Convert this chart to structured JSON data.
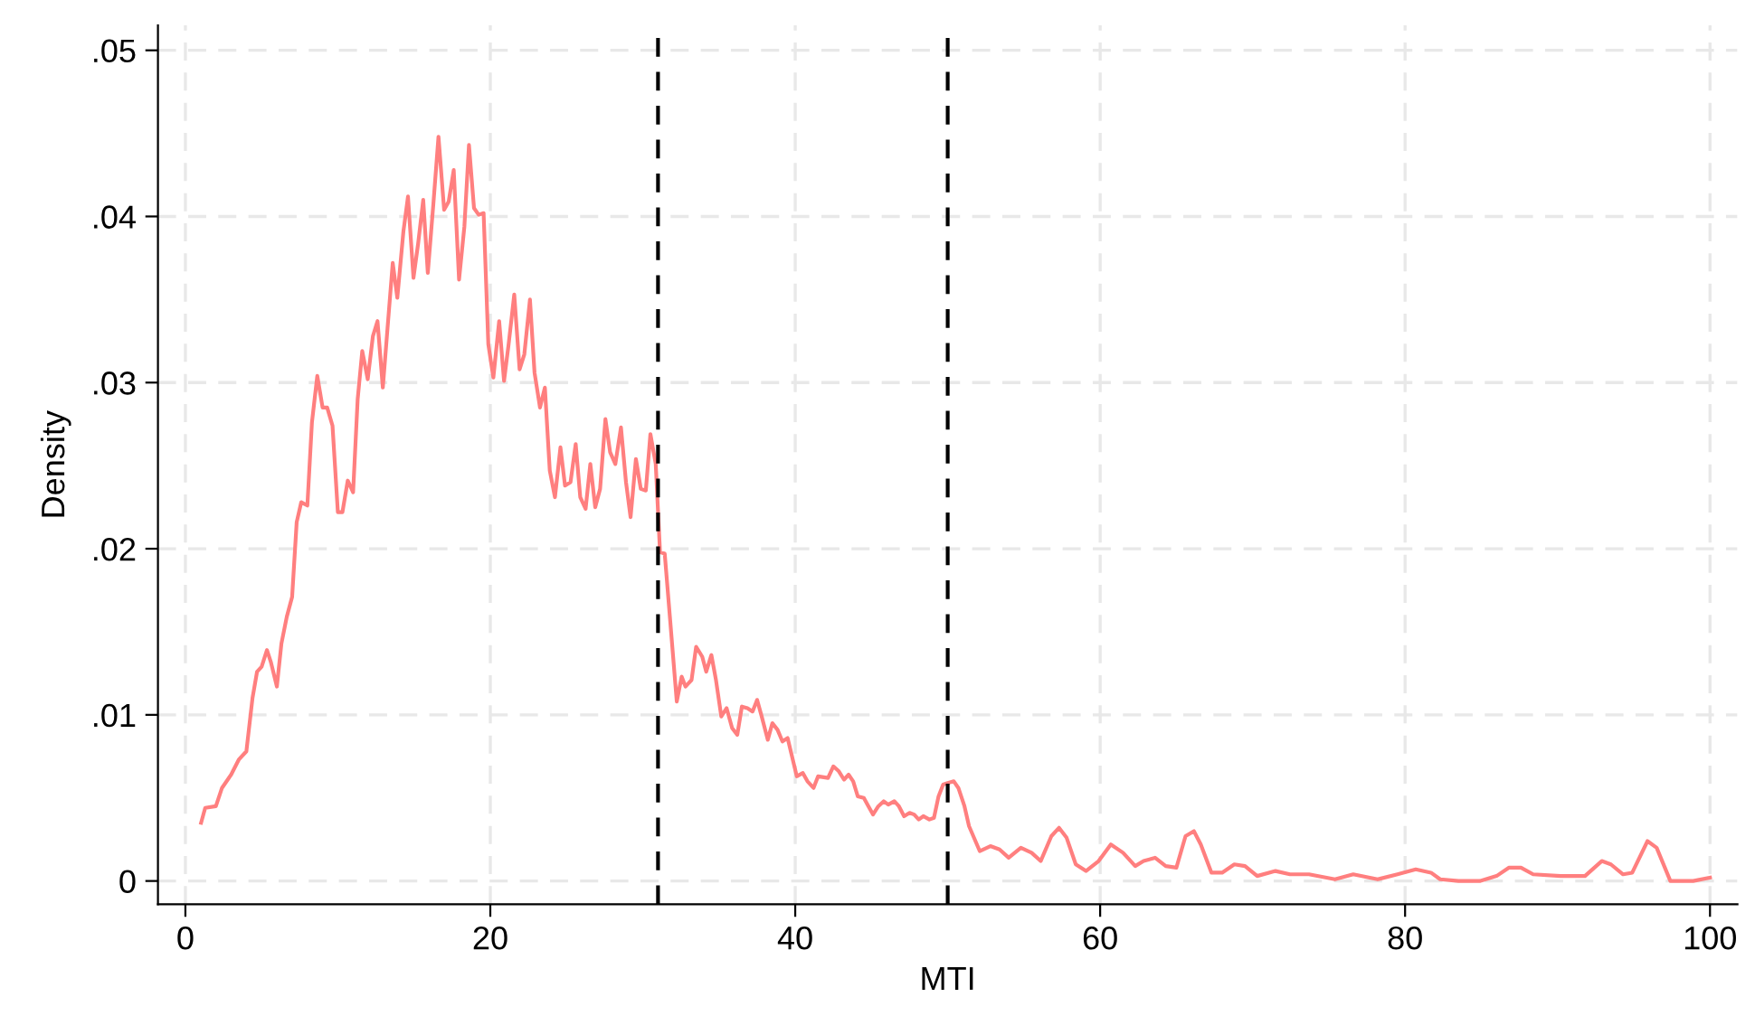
{
  "chart_data": {
    "type": "line",
    "xlabel": "MTI",
    "ylabel": "Density",
    "x": [
      1.03,
      1.3,
      2.0,
      2.4,
      3.0,
      3.5,
      4.0,
      4.4,
      4.7,
      5.0,
      5.35,
      5.6,
      6.0,
      6.3,
      6.65,
      7.0,
      7.3,
      7.6,
      8.0,
      8.3,
      8.65,
      9.0,
      9.3,
      9.65,
      10.0,
      10.3,
      10.65,
      11.0,
      11.3,
      11.6,
      11.96,
      12.3,
      12.6,
      12.95,
      13.26,
      13.6,
      13.9,
      14.3,
      14.6,
      14.96,
      15.27,
      15.6,
      15.9,
      16.26,
      16.6,
      16.97,
      17.27,
      17.6,
      17.95,
      18.3,
      18.6,
      18.93,
      19.24,
      19.56,
      19.87,
      20.2,
      20.58,
      20.9,
      21.2,
      21.57,
      21.92,
      22.23,
      22.6,
      22.9,
      23.26,
      23.58,
      23.9,
      24.24,
      24.6,
      24.9,
      25.26,
      25.6,
      25.9,
      26.25,
      26.56,
      26.88,
      27.2,
      27.55,
      27.86,
      28.2,
      28.57,
      28.9,
      29.2,
      29.55,
      29.87,
      30.2,
      30.5,
      30.85,
      31.13,
      31.44,
      31.76,
      32.23,
      32.55,
      32.8,
      33.2,
      33.5,
      33.9,
      34.16,
      34.5,
      34.8,
      35.15,
      35.5,
      35.86,
      36.2,
      36.5,
      36.87,
      37.2,
      37.5,
      37.8,
      38.2,
      38.5,
      38.84,
      39.16,
      39.5,
      40.1,
      40.5,
      40.8,
      41.2,
      41.5,
      42.15,
      42.5,
      42.86,
      43.2,
      43.5,
      43.8,
      44.1,
      44.5,
      44.8,
      45.1,
      45.45,
      45.8,
      46.1,
      46.5,
      46.8,
      47.14,
      47.5,
      47.8,
      48.1,
      48.4,
      48.8,
      49.1,
      49.4,
      49.7,
      50.0,
      50.4,
      50.7,
      51.1,
      51.4,
      52.1,
      52.8,
      53.4,
      54.0,
      54.8,
      55.5,
      56.1,
      56.8,
      57.3,
      57.8,
      58.4,
      59.07,
      59.9,
      60.7,
      61.5,
      62.3,
      62.85,
      63.6,
      64.3,
      65.0,
      65.6,
      66.15,
      66.6,
      67.3,
      68.0,
      68.8,
      69.5,
      70.3,
      71.5,
      72.45,
      73.7,
      75.4,
      76.6,
      78.2,
      79.5,
      80.7,
      81.7,
      82.3,
      83.5,
      84.9,
      86.0,
      86.8,
      87.6,
      88.4,
      90.2,
      91.8,
      92.9,
      93.5,
      94.3,
      94.9,
      95.9,
      96.5,
      97.4,
      98.9,
      100.0
    ],
    "series": [
      {
        "color": "#ff7f7f",
        "values": [
          0.0035,
          0.0044,
          0.0045,
          0.0056,
          0.0064,
          0.0073,
          0.0078,
          0.011,
          0.0126,
          0.0129,
          0.0139,
          0.0132,
          0.0117,
          0.0143,
          0.0159,
          0.0171,
          0.0216,
          0.0228,
          0.0226,
          0.0276,
          0.0304,
          0.0285,
          0.0285,
          0.0274,
          0.0222,
          0.0222,
          0.0241,
          0.0234,
          0.029,
          0.0319,
          0.0302,
          0.0328,
          0.0337,
          0.0297,
          0.0333,
          0.0372,
          0.0351,
          0.0391,
          0.0412,
          0.0363,
          0.0384,
          0.041,
          0.0366,
          0.0407,
          0.0448,
          0.0404,
          0.0409,
          0.0428,
          0.0362,
          0.0394,
          0.0443,
          0.0405,
          0.0401,
          0.0402,
          0.0323,
          0.0303,
          0.0337,
          0.0301,
          0.0323,
          0.0353,
          0.0308,
          0.0317,
          0.035,
          0.0306,
          0.0285,
          0.0297,
          0.0247,
          0.0231,
          0.0261,
          0.0238,
          0.024,
          0.0263,
          0.0231,
          0.0224,
          0.0251,
          0.0225,
          0.0236,
          0.0278,
          0.0258,
          0.0251,
          0.0273,
          0.024,
          0.0219,
          0.0254,
          0.0236,
          0.0235,
          0.0269,
          0.0251,
          0.0198,
          0.0197,
          0.0161,
          0.0108,
          0.0123,
          0.0117,
          0.0121,
          0.0141,
          0.0135,
          0.0126,
          0.0136,
          0.0121,
          0.0099,
          0.0104,
          0.0092,
          0.0088,
          0.0105,
          0.0104,
          0.0102,
          0.0109,
          0.0099,
          0.0085,
          0.0095,
          0.0091,
          0.0084,
          0.0086,
          0.0063,
          0.0065,
          0.006,
          0.0056,
          0.0063,
          0.0062,
          0.0069,
          0.0066,
          0.0061,
          0.0064,
          0.006,
          0.0051,
          0.005,
          0.0045,
          0.004,
          0.0045,
          0.0048,
          0.0046,
          0.0048,
          0.0045,
          0.0039,
          0.0041,
          0.004,
          0.0037,
          0.0039,
          0.0037,
          0.0038,
          0.0051,
          0.0058,
          0.0059,
          0.006,
          0.0056,
          0.0045,
          0.0033,
          0.0018,
          0.0021,
          0.0019,
          0.0014,
          0.002,
          0.0017,
          0.0012,
          0.0027,
          0.0032,
          0.0026,
          0.001,
          0.0006,
          0.0012,
          0.0022,
          0.0017,
          0.0009,
          0.0012,
          0.0014,
          0.0009,
          0.0008,
          0.0027,
          0.003,
          0.0022,
          0.0005,
          0.0005,
          0.001,
          0.0009,
          0.0003,
          0.0006,
          0.0004,
          0.0004,
          0.0001,
          0.0004,
          0.0001,
          0.0004,
          0.0007,
          0.0005,
          0.0001,
          0.0,
          0.0,
          0.0003,
          0.0008,
          0.0008,
          0.0004,
          0.0003,
          0.0003,
          0.0012,
          0.001,
          0.0004,
          0.0005,
          0.0024,
          0.002,
          0.0,
          0.0,
          0.0002
        ]
      }
    ],
    "xlim": [
      -1.8,
      101.8
    ],
    "xticks": [
      0,
      20,
      40,
      60,
      80,
      100
    ],
    "ylim": [
      -0.0014,
      0.0515
    ],
    "yticks": [
      {
        "value": 0,
        "label": "0"
      },
      {
        "value": 0.01,
        "label": ".01"
      },
      {
        "value": 0.02,
        "label": ".02"
      },
      {
        "value": 0.03,
        "label": ".03"
      },
      {
        "value": 0.04,
        "label": ".04"
      },
      {
        "value": 0.05,
        "label": ".05"
      }
    ],
    "ref_lines": [
      {
        "axis": "x",
        "value": 31,
        "color": "#000000",
        "line_style": "dashed"
      },
      {
        "axis": "x",
        "value": 50,
        "color": "#000000",
        "line_style": "dashed"
      }
    ],
    "grid": true,
    "marker": "none",
    "line_style": "solid"
  }
}
